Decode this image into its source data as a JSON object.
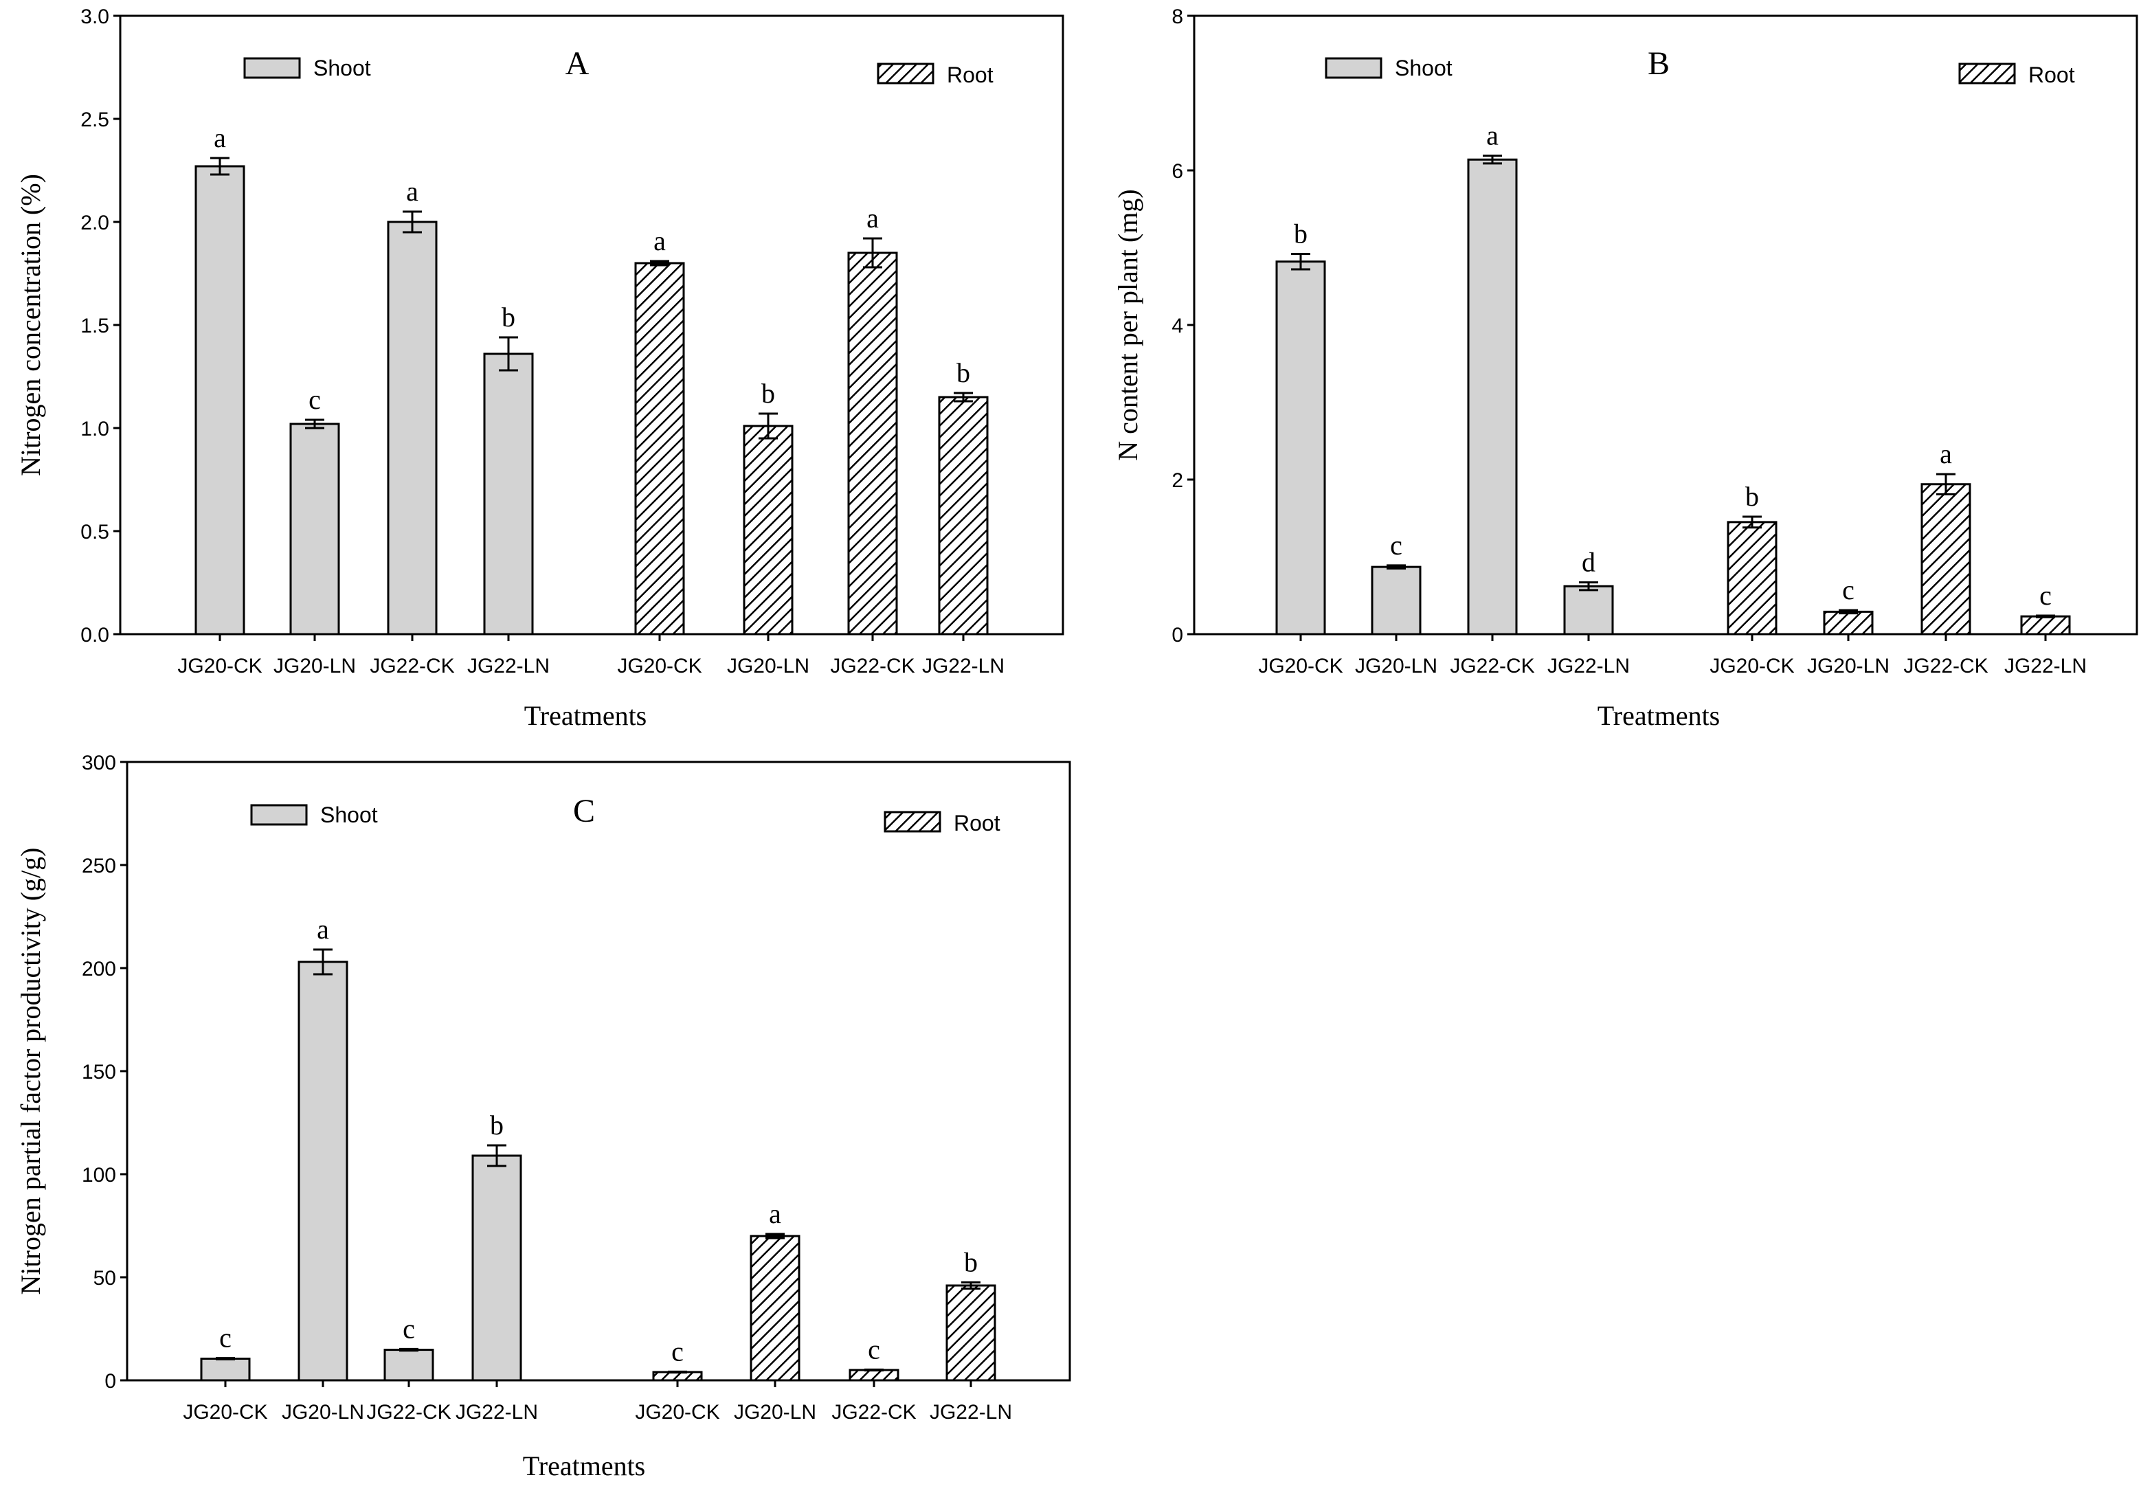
{
  "colors": {
    "shoot_fill": "#d3d3d3",
    "root_hatch": "#000000",
    "axis": "#000000",
    "background": "#ffffff"
  },
  "chart_data": [
    {
      "id": "A",
      "type": "bar",
      "panel_label": "A",
      "title": "",
      "xlabel": "Treatments",
      "ylabel": "Nitrogen concentration (%)",
      "ylim": [
        0,
        3.0
      ],
      "yticks": [
        0,
        0.5,
        1.0,
        1.5,
        2.0,
        2.5,
        3.0
      ],
      "ytick_labels": [
        "0.0",
        "0.5",
        "1.0",
        "1.5",
        "2.0",
        "2.5",
        "3.0"
      ],
      "categories": [
        "JG20-CK",
        "JG20-LN",
        "JG22-CK",
        "JG22-LN"
      ],
      "legend": {
        "shoot": "Shoot",
        "root": "Root"
      },
      "series": [
        {
          "name": "Shoot",
          "values": [
            2.27,
            1.02,
            2.0,
            1.36
          ],
          "errors": [
            0.04,
            0.02,
            0.05,
            0.08
          ],
          "letters": [
            "a",
            "c",
            "a",
            "b"
          ]
        },
        {
          "name": "Root",
          "values": [
            1.8,
            1.01,
            1.85,
            1.15
          ],
          "errors": [
            0.01,
            0.06,
            0.07,
            0.02
          ],
          "letters": [
            "a",
            "b",
            "a",
            "b"
          ]
        }
      ]
    },
    {
      "id": "B",
      "type": "bar",
      "panel_label": "B",
      "title": "",
      "xlabel": "Treatments",
      "ylabel": "N content per plant (mg)",
      "ylim": [
        0,
        8
      ],
      "yticks": [
        0,
        2,
        4,
        6,
        8
      ],
      "ytick_labels": [
        "0",
        "2",
        "4",
        "6",
        "8"
      ],
      "categories": [
        "JG20-CK",
        "JG20-LN",
        "JG22-CK",
        "JG22-LN"
      ],
      "legend": {
        "shoot": "Shoot",
        "root": "Root"
      },
      "series": [
        {
          "name": "Shoot",
          "values": [
            4.82,
            0.87,
            6.14,
            0.62
          ],
          "errors": [
            0.1,
            0.02,
            0.05,
            0.05
          ],
          "letters": [
            "b",
            "c",
            "a",
            "d"
          ]
        },
        {
          "name": "Root",
          "values": [
            1.45,
            0.29,
            1.94,
            0.23
          ],
          "errors": [
            0.07,
            0.02,
            0.13,
            0.01
          ],
          "letters": [
            "b",
            "c",
            "a",
            "c"
          ]
        }
      ]
    },
    {
      "id": "C",
      "type": "bar",
      "panel_label": "C",
      "title": "",
      "xlabel": "Treatments",
      "ylabel": "Nitrogen partial factor productivity (g/g)",
      "ylim": [
        0,
        300
      ],
      "yticks": [
        0,
        50,
        100,
        150,
        200,
        250,
        300
      ],
      "ytick_labels": [
        "0",
        "50",
        "100",
        "150",
        "200",
        "250",
        "300"
      ],
      "categories": [
        "JG20-CK",
        "JG20-LN",
        "JG22-CK",
        "JG22-LN"
      ],
      "legend": {
        "shoot": "Shoot",
        "root": "Root"
      },
      "series": [
        {
          "name": "Shoot",
          "values": [
            10.5,
            203,
            14.8,
            109
          ],
          "errors": [
            0.3,
            6,
            0.4,
            5
          ],
          "letters": [
            "c",
            "a",
            "c",
            "b"
          ]
        },
        {
          "name": "Root",
          "values": [
            4,
            70,
            5,
            46
          ],
          "errors": [
            0.2,
            1,
            0.2,
            1.5
          ],
          "letters": [
            "c",
            "a",
            "c",
            "b"
          ]
        }
      ]
    }
  ]
}
